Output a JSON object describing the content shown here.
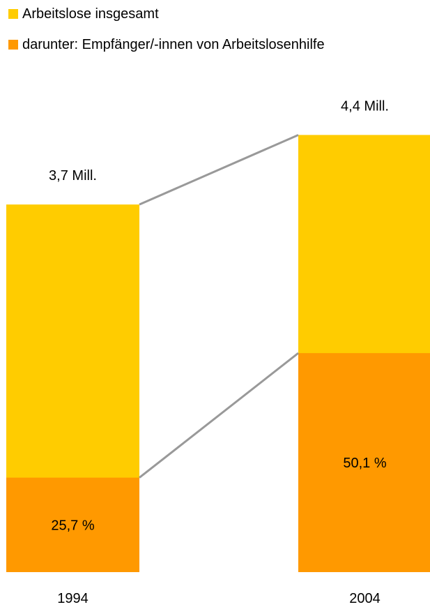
{
  "chart_data": {
    "type": "bar",
    "stacked": true,
    "categories": [
      "1994",
      "2004"
    ],
    "series": [
      {
        "name": "Arbeitslose insgesamt",
        "color": "#FFCC00",
        "values": [
          3.7,
          4.4
        ],
        "unit": "Mill.",
        "value_labels": [
          "3,7 Mill.",
          "4,4 Mill."
        ]
      },
      {
        "name": "darunter: Empfänger/-innen von Arbeitslosenhilfe",
        "color": "#FF9900",
        "share_percent": [
          25.7,
          50.1
        ],
        "value_labels": [
          "25,7 %",
          "50,1 %"
        ]
      }
    ],
    "connector_lines": true,
    "connector_color": "#999999",
    "legend_position": "top-left",
    "grid": false
  }
}
